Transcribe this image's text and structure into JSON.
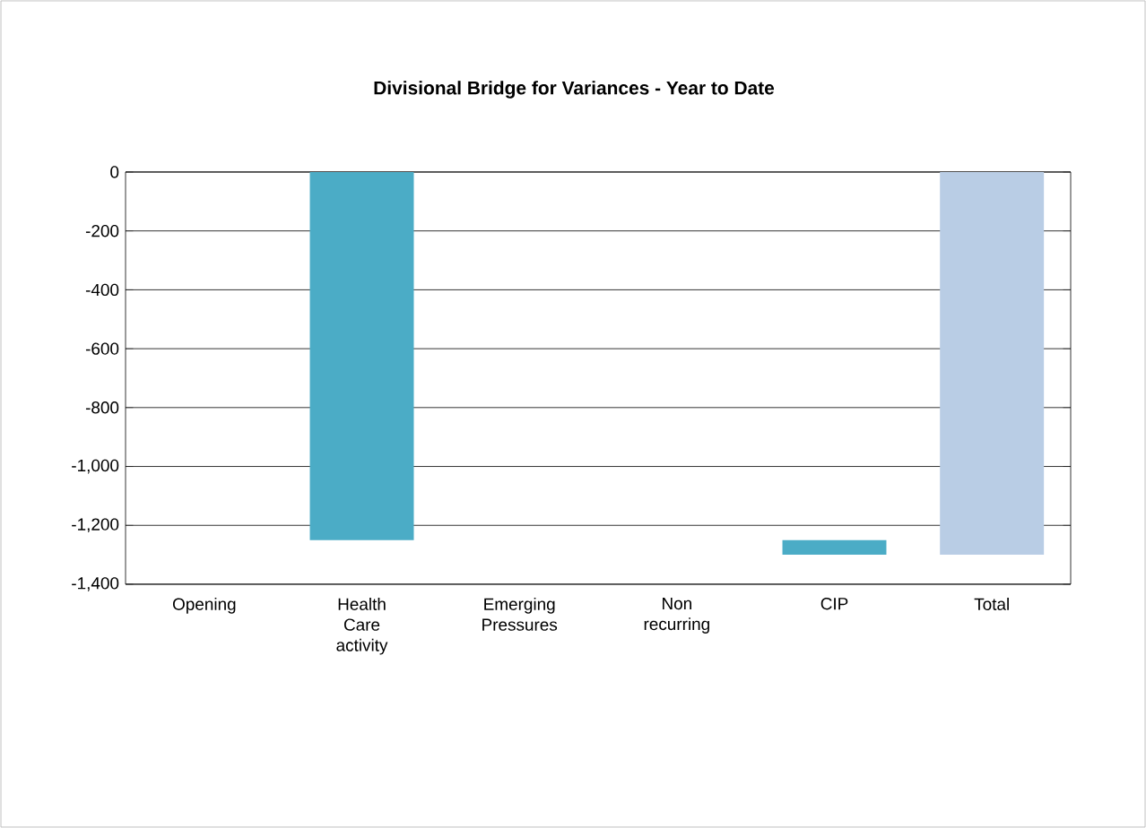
{
  "chart_data": {
    "type": "bar",
    "title": "Divisional Bridge for Variances - Year to Date",
    "categories": [
      "Opening",
      "Health Care activity",
      "Emerging Pressures",
      "Non recurring",
      "CIP",
      "Total"
    ],
    "values": [
      null,
      -1250,
      null,
      null,
      -50,
      -1300
    ],
    "base": [
      null,
      0,
      null,
      null,
      -1250,
      0
    ],
    "colors": [
      "#4bacc6",
      "#4bacc6",
      "#4bacc6",
      "#4bacc6",
      "#4bacc6",
      "#b9cde5"
    ],
    "ylim": [
      -1400,
      0
    ],
    "yticks": [
      {
        "value": 0,
        "label": "0"
      },
      {
        "value": -200,
        "label": "-200"
      },
      {
        "value": -400,
        "label": "-400"
      },
      {
        "value": -600,
        "label": "-600"
      },
      {
        "value": -800,
        "label": "-800"
      },
      {
        "value": -1000,
        "label": "-1,000"
      },
      {
        "value": -1200,
        "label": "-1,200"
      },
      {
        "value": -1400,
        "label": "-1,400"
      }
    ],
    "grid": "y"
  }
}
